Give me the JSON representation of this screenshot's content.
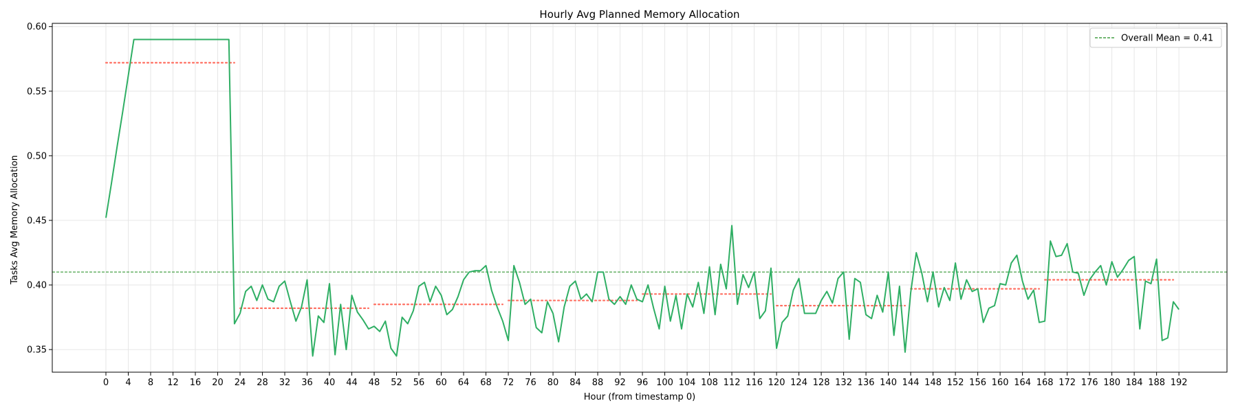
{
  "chart_data": {
    "type": "line",
    "title": "Hourly Avg Planned Memory Allocation",
    "xlabel": "Hour (from timestamp 0)",
    "ylabel": "Tasks Avg Memory Allocation",
    "xlim": [
      -9.6,
      200.6
    ],
    "ylim": [
      0.3325,
      0.6025
    ],
    "x_ticks": [
      0,
      4,
      8,
      12,
      16,
      20,
      24,
      28,
      32,
      36,
      40,
      44,
      48,
      52,
      56,
      60,
      64,
      68,
      72,
      76,
      80,
      84,
      88,
      92,
      96,
      100,
      104,
      108,
      112,
      116,
      120,
      124,
      128,
      132,
      136,
      140,
      144,
      148,
      152,
      156,
      160,
      164,
      168,
      172,
      176,
      180,
      184,
      188,
      192
    ],
    "y_ticks": [
      0.35,
      0.4,
      0.45,
      0.5,
      0.55,
      0.6
    ],
    "y_tick_labels": [
      "0.35",
      "0.40",
      "0.45",
      "0.50",
      "0.55",
      "0.60"
    ],
    "grid": true,
    "legend_position": "top-right",
    "colors": {
      "series": "#2eae63",
      "mean": "#1a8a1a",
      "daily_mean": "#ff6f61"
    },
    "series": [
      {
        "values": [
          0.452,
          0.479,
          0.507,
          0.534,
          0.562,
          0.59,
          0.59,
          0.59,
          0.59,
          0.59,
          0.59,
          0.59,
          0.59,
          0.59,
          0.59,
          0.59,
          0.59,
          0.59,
          0.59,
          0.59,
          0.59,
          0.59,
          0.59,
          0.37,
          0.378,
          0.395,
          0.399,
          0.388,
          0.4,
          0.389,
          0.387,
          0.399,
          0.403,
          0.387,
          0.372,
          0.383,
          0.404,
          0.345,
          0.376,
          0.371,
          0.401,
          0.346,
          0.385,
          0.35,
          0.392,
          0.379,
          0.373,
          0.366,
          0.368,
          0.364,
          0.372,
          0.351,
          0.345,
          0.375,
          0.37,
          0.38,
          0.399,
          0.402,
          0.387,
          0.399,
          0.392,
          0.377,
          0.381,
          0.391,
          0.404,
          0.41,
          0.411,
          0.411,
          0.415,
          0.396,
          0.383,
          0.372,
          0.357,
          0.415,
          0.402,
          0.385,
          0.389,
          0.367,
          0.363,
          0.387,
          0.378,
          0.356,
          0.383,
          0.399,
          0.403,
          0.389,
          0.393,
          0.387,
          0.41,
          0.41,
          0.389,
          0.385,
          0.391,
          0.385,
          0.4,
          0.389,
          0.387,
          0.4,
          0.382,
          0.366,
          0.399,
          0.372,
          0.392,
          0.366,
          0.393,
          0.383,
          0.402,
          0.378,
          0.414,
          0.377,
          0.416,
          0.397,
          0.446,
          0.385,
          0.408,
          0.398,
          0.41,
          0.374,
          0.38,
          0.413,
          0.351,
          0.371,
          0.376,
          0.396,
          0.405,
          0.378,
          0.378,
          0.378,
          0.388,
          0.395,
          0.386,
          0.405,
          0.41,
          0.358,
          0.405,
          0.402,
          0.377,
          0.374,
          0.392,
          0.379,
          0.41,
          0.361,
          0.399,
          0.348,
          0.394,
          0.425,
          0.409,
          0.387,
          0.41,
          0.383,
          0.398,
          0.388,
          0.417,
          0.389,
          0.404,
          0.395,
          0.397,
          0.371,
          0.382,
          0.384,
          0.401,
          0.4,
          0.417,
          0.423,
          0.403,
          0.389,
          0.396,
          0.371,
          0.372,
          0.434,
          0.422,
          0.423,
          0.432,
          0.41,
          0.409,
          0.392,
          0.404,
          0.41,
          0.415,
          0.4,
          0.418,
          0.406,
          0.412,
          0.419,
          0.422,
          0.366,
          0.403,
          0.401,
          0.42,
          0.357,
          0.359,
          0.387,
          0.381
        ]
      }
    ],
    "overall_mean": {
      "label": "Overall Mean = 0.41",
      "value": 0.41
    },
    "daily_means": [
      {
        "x0": 0,
        "x1": 23,
        "value": 0.572
      },
      {
        "x0": 24,
        "x1": 47,
        "value": 0.382
      },
      {
        "x0": 48,
        "x1": 71,
        "value": 0.385
      },
      {
        "x0": 72,
        "x1": 95,
        "value": 0.388
      },
      {
        "x0": 96,
        "x1": 119,
        "value": 0.393
      },
      {
        "x0": 120,
        "x1": 143,
        "value": 0.384
      },
      {
        "x0": 144,
        "x1": 167,
        "value": 0.397
      },
      {
        "x0": 168,
        "x1": 191,
        "value": 0.404
      }
    ]
  }
}
